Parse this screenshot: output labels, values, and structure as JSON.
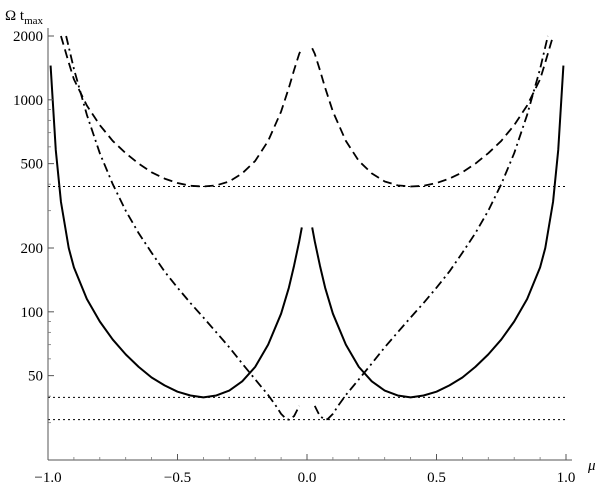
{
  "chart_data": {
    "type": "line",
    "title": "",
    "xlabel": "μ",
    "ylabel_main": "Ω t",
    "ylabel_sub": "max",
    "xlim": [
      -1.0,
      1.0
    ],
    "ylim": [
      20,
      2000
    ],
    "yscale": "log",
    "grid": false,
    "x_ticks": [
      {
        "value": -1.0,
        "label": "−1.0"
      },
      {
        "value": -0.5,
        "label": "−0.5"
      },
      {
        "value": 0.0,
        "label": "0.0"
      },
      {
        "value": 0.5,
        "label": "0.5"
      },
      {
        "value": 1.0,
        "label": "1.0"
      }
    ],
    "y_ticks": [
      {
        "value": 50,
        "label": "50"
      },
      {
        "value": 100,
        "label": "100"
      },
      {
        "value": 200,
        "label": "200"
      },
      {
        "value": 500,
        "label": "500"
      },
      {
        "value": 1000,
        "label": "1000"
      },
      {
        "value": 2000,
        "label": "2000"
      }
    ],
    "y_minor_ticks": [
      30,
      40,
      60,
      70,
      80,
      90,
      300,
      400,
      600,
      700,
      800,
      900
    ],
    "series": [
      {
        "style": "solid",
        "x": [
          -0.99,
          -0.97,
          -0.95,
          -0.92,
          -0.9,
          -0.85,
          -0.8,
          -0.75,
          -0.7,
          -0.65,
          -0.6,
          -0.55,
          -0.5,
          -0.45,
          -0.4,
          -0.35,
          -0.3,
          -0.25,
          -0.2,
          -0.15,
          -0.1,
          -0.07,
          -0.05,
          -0.03,
          -0.02
        ],
        "y": [
          1450,
          580,
          330,
          200,
          162,
          115,
          90,
          74,
          63,
          55,
          49,
          45,
          42,
          40.3,
          39.5,
          40.3,
          42.5,
          47,
          55,
          70,
          98,
          130,
          165,
          215,
          250
        ]
      },
      {
        "style": "solid",
        "x": [
          0.02,
          0.03,
          0.05,
          0.07,
          0.1,
          0.15,
          0.2,
          0.25,
          0.3,
          0.35,
          0.4,
          0.45,
          0.5,
          0.55,
          0.6,
          0.65,
          0.7,
          0.75,
          0.8,
          0.85,
          0.9,
          0.92,
          0.95,
          0.97,
          0.99
        ],
        "y": [
          250,
          215,
          165,
          130,
          98,
          70,
          55,
          47,
          42.5,
          40.3,
          39.5,
          40.3,
          42,
          45,
          49,
          55,
          63,
          74,
          90,
          115,
          162,
          200,
          330,
          580,
          1450
        ]
      },
      {
        "style": "dashed",
        "x": [
          -0.95,
          -0.92,
          -0.9,
          -0.85,
          -0.8,
          -0.75,
          -0.7,
          -0.65,
          -0.6,
          -0.55,
          -0.5,
          -0.45,
          -0.4,
          -0.35,
          -0.3,
          -0.25,
          -0.2,
          -0.15,
          -0.1,
          -0.07,
          -0.05,
          -0.03,
          -0.02
        ],
        "y": [
          2000,
          1500,
          1250,
          940,
          760,
          640,
          560,
          500,
          455,
          425,
          405,
          393,
          390,
          395,
          412,
          450,
          515,
          640,
          880,
          1140,
          1380,
          1650,
          1750
        ]
      },
      {
        "style": "dashed",
        "x": [
          0.02,
          0.03,
          0.05,
          0.07,
          0.1,
          0.15,
          0.2,
          0.25,
          0.3,
          0.35,
          0.4,
          0.45,
          0.5,
          0.55,
          0.6,
          0.65,
          0.7,
          0.75,
          0.8,
          0.85,
          0.9,
          0.92,
          0.95
        ],
        "y": [
          1750,
          1650,
          1380,
          1140,
          880,
          640,
          515,
          450,
          412,
          395,
          390,
          393,
          405,
          425,
          455,
          500,
          560,
          640,
          760,
          940,
          1250,
          1500,
          2000
        ]
      },
      {
        "style": "dashdot",
        "x": [
          -0.93,
          -0.9,
          -0.85,
          -0.8,
          -0.75,
          -0.7,
          -0.65,
          -0.6,
          -0.55,
          -0.5,
          -0.45,
          -0.4,
          -0.35,
          -0.3,
          -0.25,
          -0.2,
          -0.15,
          -0.12,
          -0.1,
          -0.08,
          -0.07,
          -0.05,
          -0.04,
          -0.03
        ],
        "y": [
          2000,
          1400,
          850,
          560,
          400,
          300,
          235,
          190,
          155,
          130,
          110,
          94,
          80,
          68,
          57,
          48,
          40.5,
          36,
          33,
          31.2,
          31,
          32.2,
          34,
          36
        ]
      },
      {
        "style": "dashdot",
        "x": [
          0.03,
          0.04,
          0.05,
          0.07,
          0.08,
          0.1,
          0.12,
          0.15,
          0.2,
          0.25,
          0.3,
          0.35,
          0.4,
          0.45,
          0.5,
          0.55,
          0.6,
          0.65,
          0.7,
          0.75,
          0.8,
          0.85,
          0.9,
          0.93
        ],
        "y": [
          36,
          34,
          32.2,
          31,
          31.2,
          33,
          36,
          40.5,
          48,
          57,
          68,
          80,
          94,
          110,
          130,
          155,
          190,
          235,
          300,
          400,
          560,
          850,
          1400,
          2000
        ]
      }
    ],
    "reference_lines": [
      {
        "y": 390,
        "style": "dotted"
      },
      {
        "y": 39.5,
        "style": "dotted"
      },
      {
        "y": 31,
        "style": "dotted"
      }
    ]
  }
}
